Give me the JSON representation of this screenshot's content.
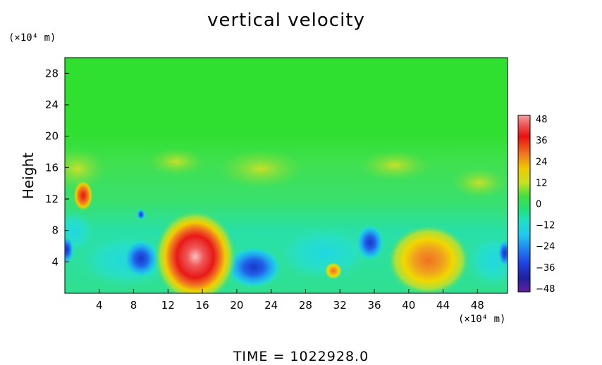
{
  "chart_data": {
    "type": "heatmap",
    "title": "vertical velocity",
    "xlabel": "",
    "ylabel": "Height",
    "x_unit": "(×10⁴ m)",
    "y_unit": "(×10⁴ m)",
    "xlim": [
      0,
      51.5
    ],
    "ylim": [
      0,
      30
    ],
    "x_ticks": [
      4,
      8,
      12,
      16,
      20,
      24,
      28,
      32,
      36,
      40,
      44,
      48
    ],
    "y_ticks": [
      4,
      8,
      12,
      16,
      20,
      24,
      28
    ],
    "colorbar": {
      "min": -50,
      "max": 50,
      "labels": [
        48,
        36,
        24,
        12,
        0,
        -12,
        -24,
        -36,
        -48
      ],
      "label_text": [
        "48",
        "36",
        "24",
        "12",
        "0",
        "−12",
        "−24",
        "−36",
        "−48"
      ]
    },
    "features": [
      {
        "name": "strong updraft",
        "x": 15.5,
        "y": 4,
        "value": 48
      },
      {
        "name": "updraft",
        "x": 42,
        "y": 3.5,
        "value": 30
      },
      {
        "name": "updraft",
        "x": 2.5,
        "y": 12.5,
        "value": 40
      },
      {
        "name": "downdraft",
        "x": 35,
        "y": 6,
        "value": -36
      },
      {
        "name": "downdraft",
        "x": 22.5,
        "y": 3,
        "value": -34
      },
      {
        "name": "downdraft",
        "x": 9,
        "y": 4,
        "value": -30
      }
    ]
  },
  "footer": "TIME  =  1022928.0"
}
